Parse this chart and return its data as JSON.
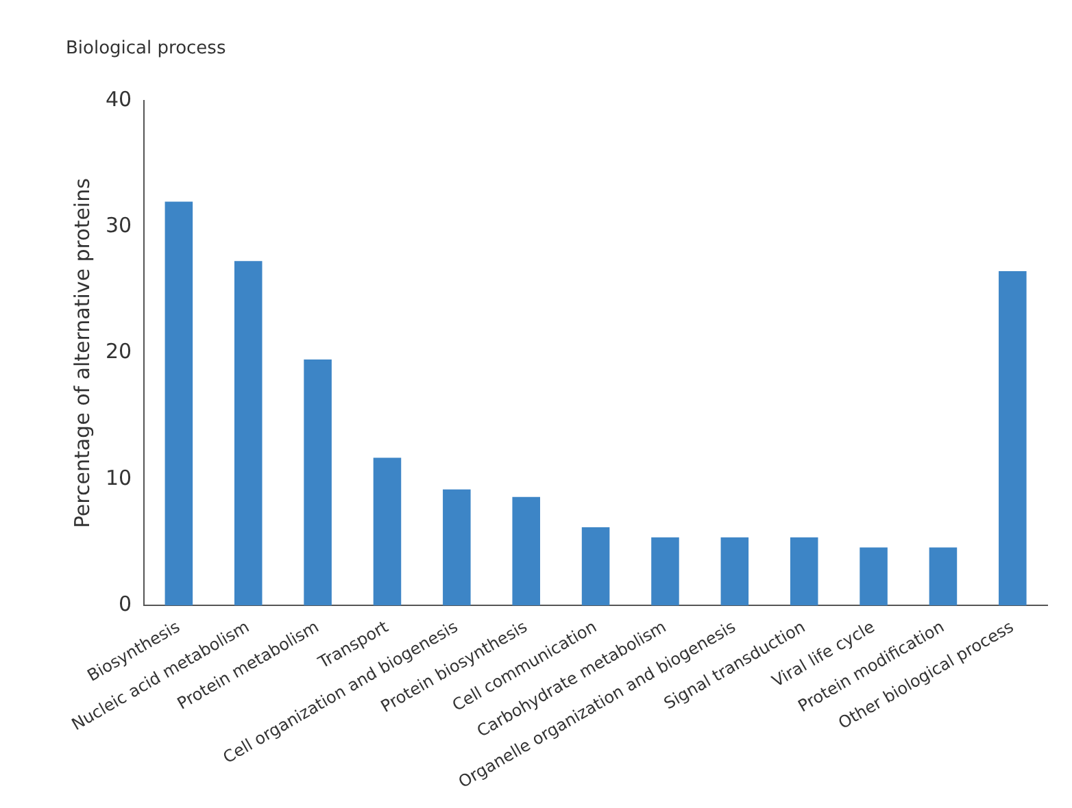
{
  "chart_data": {
    "type": "bar",
    "title": "Biological process",
    "ylabel": "Percentage of alternative proteins",
    "categories": [
      "Biosynthesis",
      "Nucleic acid metabolism",
      "Protein metabolism",
      "Transport",
      "Cell organization and biogenesis",
      "Protein biosynthesis",
      "Cell communication",
      "Carbohydrate metabolism",
      "Organelle organization and biogenesis",
      "Signal transduction",
      "Viral life cycle",
      "Protein modification",
      "Other biological process"
    ],
    "values": [
      32,
      27.3,
      19.5,
      11.7,
      9.2,
      8.6,
      6.2,
      5.4,
      5.4,
      5.4,
      4.6,
      4.6,
      26.5
    ],
    "color": "#3d85c6",
    "ylim": [
      0,
      40
    ],
    "yticks": [
      0,
      10,
      20,
      30,
      40
    ],
    "grid": false,
    "legend": false
  }
}
